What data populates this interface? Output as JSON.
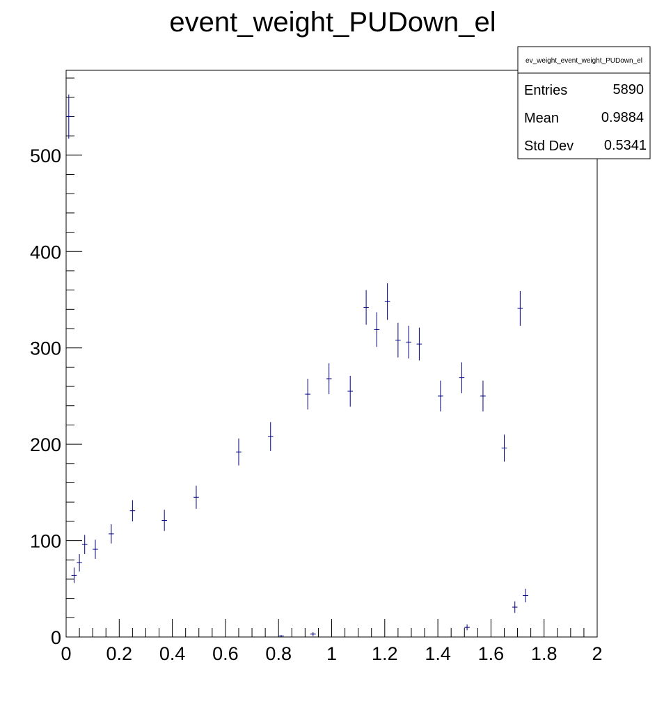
{
  "chart_data": {
    "type": "scatter",
    "title": "event_weight_PUDown_el",
    "xlabel": "",
    "ylabel": "",
    "xlim": [
      0,
      2
    ],
    "ylim": [
      0,
      588
    ],
    "x_ticks": [
      "0",
      "0.2",
      "0.4",
      "0.6",
      "0.8",
      "1",
      "1.2",
      "1.4",
      "1.6",
      "1.8",
      "2"
    ],
    "y_ticks": [
      "0",
      "100",
      "200",
      "300",
      "400",
      "500"
    ],
    "grid": false,
    "marker_color": "#000080",
    "stats_box": {
      "title": "ev_weight_event_weight_PUDown_el",
      "entries_label": "Entries",
      "entries_value": "5890",
      "mean_label": "Mean",
      "mean_value": "0.9884",
      "stddev_label": "Std Dev",
      "stddev_value": "0.5341"
    },
    "points": [
      {
        "x": 0.01,
        "y": 540,
        "err": 23
      },
      {
        "x": 0.03,
        "y": 64,
        "err": 8
      },
      {
        "x": 0.05,
        "y": 77,
        "err": 9
      },
      {
        "x": 0.07,
        "y": 96,
        "err": 10
      },
      {
        "x": 0.11,
        "y": 91,
        "err": 10
      },
      {
        "x": 0.17,
        "y": 107,
        "err": 10
      },
      {
        "x": 0.25,
        "y": 131,
        "err": 11
      },
      {
        "x": 0.37,
        "y": 121,
        "err": 11
      },
      {
        "x": 0.49,
        "y": 145,
        "err": 12
      },
      {
        "x": 0.65,
        "y": 192,
        "err": 14
      },
      {
        "x": 0.77,
        "y": 208,
        "err": 15
      },
      {
        "x": 0.81,
        "y": 1,
        "err": 1
      },
      {
        "x": 0.93,
        "y": 3,
        "err": 2
      },
      {
        "x": 0.91,
        "y": 252,
        "err": 16
      },
      {
        "x": 0.99,
        "y": 268,
        "err": 16
      },
      {
        "x": 1.07,
        "y": 255,
        "err": 16
      },
      {
        "x": 1.13,
        "y": 342,
        "err": 18
      },
      {
        "x": 1.17,
        "y": 319,
        "err": 18
      },
      {
        "x": 1.21,
        "y": 348,
        "err": 19
      },
      {
        "x": 1.25,
        "y": 308,
        "err": 18
      },
      {
        "x": 1.29,
        "y": 306,
        "err": 17
      },
      {
        "x": 1.33,
        "y": 304,
        "err": 17
      },
      {
        "x": 1.41,
        "y": 250,
        "err": 16
      },
      {
        "x": 1.49,
        "y": 269,
        "err": 16
      },
      {
        "x": 1.51,
        "y": 10,
        "err": 3
      },
      {
        "x": 1.57,
        "y": 250,
        "err": 16
      },
      {
        "x": 1.65,
        "y": 196,
        "err": 14
      },
      {
        "x": 1.69,
        "y": 31,
        "err": 6
      },
      {
        "x": 1.71,
        "y": 341,
        "err": 18
      },
      {
        "x": 1.73,
        "y": 43,
        "err": 7
      }
    ]
  }
}
